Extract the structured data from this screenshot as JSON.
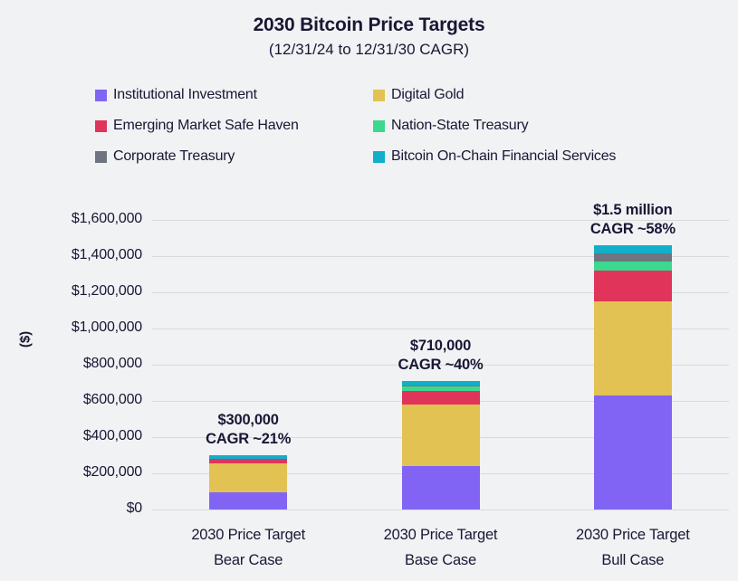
{
  "title": "2030 Bitcoin Price Targets",
  "subtitle": "(12/31/24 to 12/31/30 CAGR)",
  "colors": {
    "background": "#F1F2F4",
    "text": "#191734",
    "gridline": "#D9DADD"
  },
  "chart_data": {
    "type": "bar",
    "stacked": true,
    "title": "2030 Bitcoin Price Targets",
    "subtitle": "(12/31/24 to 12/31/30 CAGR)",
    "ylabel": "($)",
    "xlabel": "",
    "ylim": [
      0,
      1600000
    ],
    "ytick_interval": 200000,
    "grid": true,
    "legend_position": "top",
    "ytick_labels": [
      "$0",
      "$200,000",
      "$400,000",
      "$600,000",
      "$800,000",
      "$1,000,000",
      "$1,200,000",
      "$1,400,000",
      "$1,600,000"
    ],
    "categories": [
      [
        "2030 Price Target",
        "Bear Case"
      ],
      [
        "2030 Price Target",
        "Base Case"
      ],
      [
        "2030 Price Target",
        "Bull Case"
      ]
    ],
    "series": [
      {
        "name": "Institutional Investment",
        "color": "#8264F5",
        "values": [
          95000,
          240000,
          630000
        ]
      },
      {
        "name": "Digital Gold",
        "color": "#E2C253",
        "values": [
          160000,
          340000,
          520000
        ]
      },
      {
        "name": "Emerging Market Safe Haven",
        "color": "#E0345A",
        "values": [
          25000,
          75000,
          170000
        ]
      },
      {
        "name": "Nation-State Treasury",
        "color": "#3BD98F",
        "values": [
          0,
          25000,
          50000
        ]
      },
      {
        "name": "Corporate Treasury",
        "color": "#6E7580",
        "values": [
          0,
          5000,
          45000
        ]
      },
      {
        "name": "Bitcoin On-Chain Financial Services",
        "color": "#12AFC9",
        "values": [
          20000,
          25000,
          45000
        ]
      }
    ],
    "totals_label": [
      {
        "lines": [
          "$300,000",
          "CAGR ~21%"
        ]
      },
      {
        "lines": [
          "$710,000",
          "CAGR ~40%"
        ]
      },
      {
        "lines": [
          "$1.5 million",
          "CAGR ~58%"
        ]
      }
    ]
  }
}
